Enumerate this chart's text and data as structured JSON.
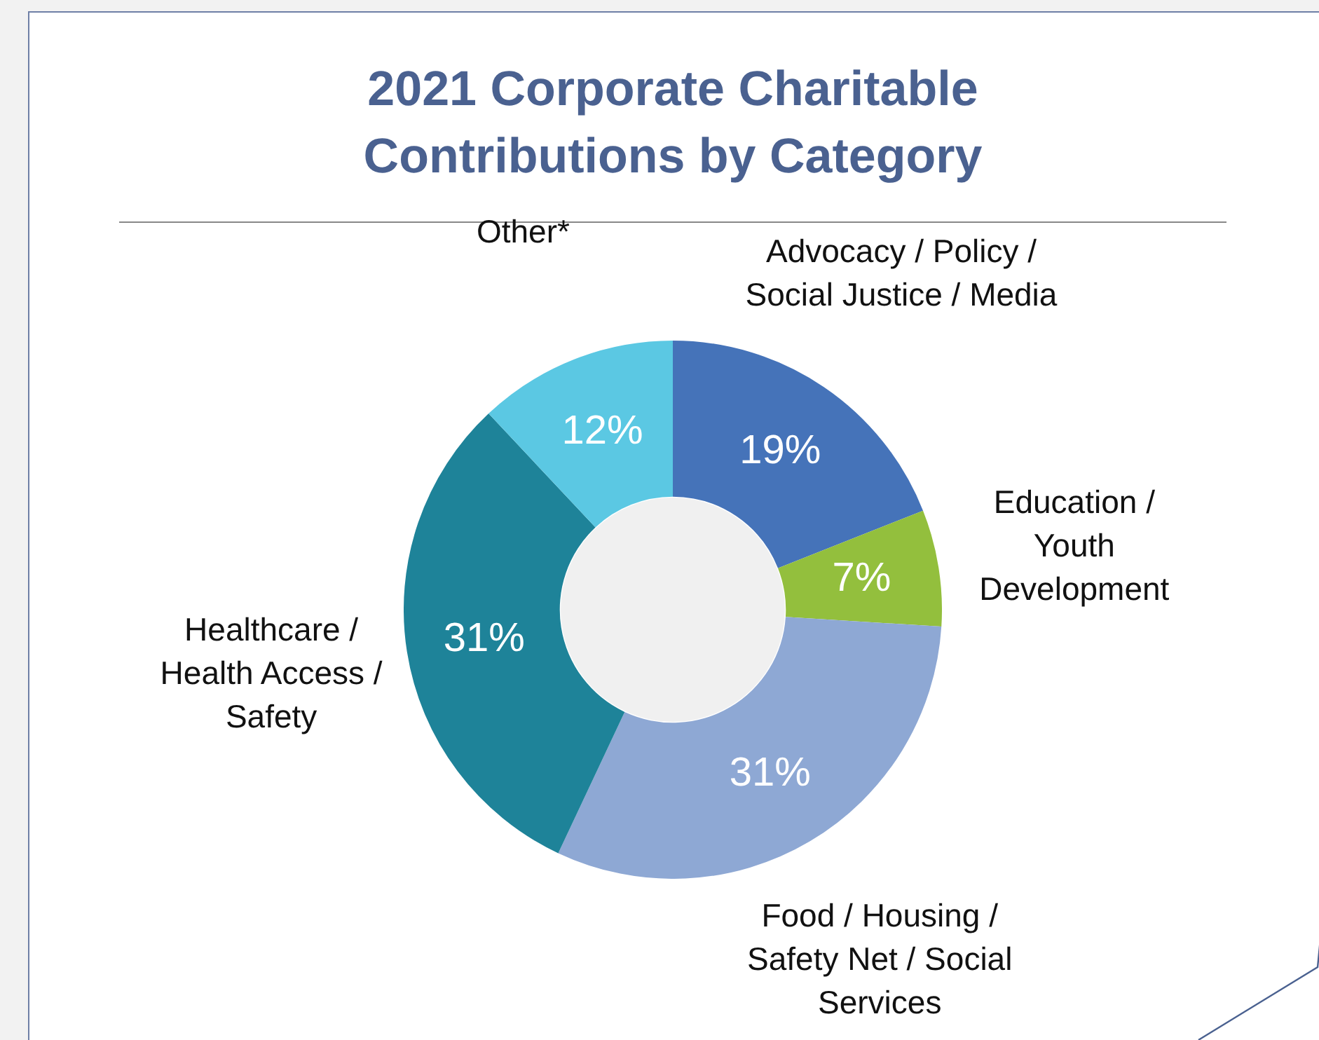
{
  "chart_data": {
    "type": "donut",
    "title": "2021 Corporate Charitable Contributions by Category",
    "categories": [
      "Advocacy / Policy / Social Justice / Media",
      "Education / Youth Development",
      "Food / Housing / Safety Net / Social Services",
      "Healthcare / Health Access / Safety",
      "Other*"
    ],
    "values": [
      19,
      7,
      31,
      31,
      12
    ],
    "colors": [
      "#4573b9",
      "#93bf3d",
      "#8ea8d4",
      "#1e8399",
      "#5bc8e3"
    ],
    "value_labels": [
      "19%",
      "7%",
      "31%",
      "31%",
      "12%"
    ]
  }
}
